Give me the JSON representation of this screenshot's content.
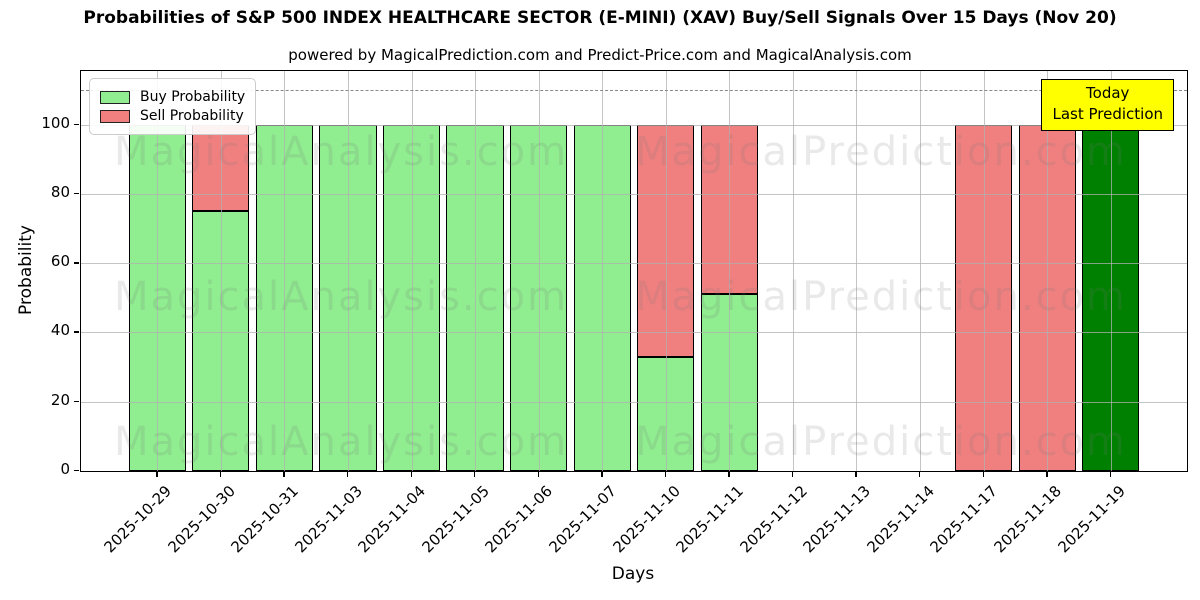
{
  "figure": {
    "title": "Probabilities of S&P 500 INDEX HEALTHCARE SECTOR (E-MINI) (XAV) Buy/Sell Signals Over 15 Days (Nov 20)",
    "subtitle": "powered by MagicalPrediction.com and Predict-Price.com and MagicalAnalysis.com"
  },
  "legend": {
    "items": [
      {
        "label": "Buy Probability",
        "color": "#90EE90"
      },
      {
        "label": "Sell Probability",
        "color": "#F08080"
      }
    ]
  },
  "annotation_box": {
    "line1": "Today",
    "line2": "Last Prediction",
    "bg_color": "#FFFF00"
  },
  "watermarks": {
    "left_text": "MagicalAnalysis.com",
    "right_text": "MagicalPrediction.com"
  },
  "colors": {
    "buy": "#90EE90",
    "sell": "#F08080",
    "last_prediction": "#008000",
    "bar_edge": "#000000",
    "grid": "#b0b0b0",
    "dashed_line": "#888888"
  },
  "chart_data": {
    "type": "bar",
    "stacked": true,
    "title": "Probabilities of S&P 500 INDEX HEALTHCARE SECTOR (E-MINI) (XAV) Buy/Sell Signals Over 15 Days (Nov 20)",
    "xlabel": "Days",
    "ylabel": "Probability",
    "categories": [
      "2025-10-29",
      "2025-10-30",
      "2025-10-31",
      "2025-11-03",
      "2025-11-04",
      "2025-11-05",
      "2025-11-06",
      "2025-11-07",
      "2025-11-10",
      "2025-11-11",
      "2025-11-12",
      "2025-11-13",
      "2025-11-14",
      "2025-11-17",
      "2025-11-18",
      "2025-11-19"
    ],
    "series": [
      {
        "name": "Buy Probability",
        "color": "#90EE90",
        "values": [
          100,
          75,
          100,
          100,
          100,
          100,
          100,
          100,
          33,
          51,
          0,
          0,
          0,
          0,
          0,
          0
        ]
      },
      {
        "name": "Sell Probability",
        "color": "#F08080",
        "values": [
          0,
          25,
          0,
          0,
          0,
          0,
          0,
          0,
          67,
          49,
          0,
          0,
          0,
          100,
          100,
          0
        ]
      },
      {
        "name": "Last Prediction (Buy)",
        "color": "#008000",
        "values": [
          0,
          0,
          0,
          0,
          0,
          0,
          0,
          0,
          0,
          0,
          0,
          0,
          0,
          0,
          0,
          100
        ]
      }
    ],
    "y_ticks": [
      0,
      20,
      40,
      60,
      80,
      100
    ],
    "ylim": [
      0,
      115.5
    ],
    "dashed_line_y": 110,
    "grid": true,
    "legend_position": "upper left"
  }
}
